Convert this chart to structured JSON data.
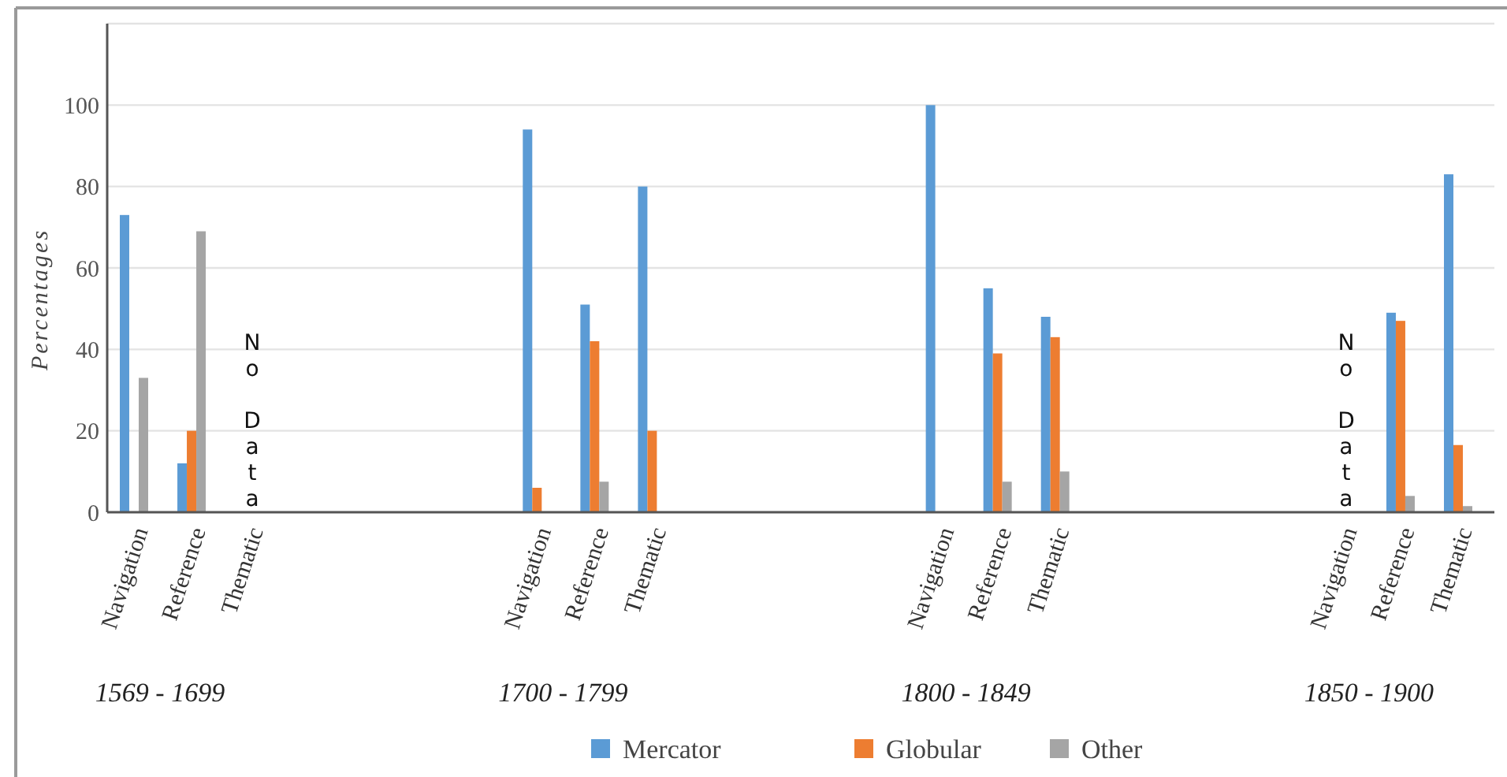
{
  "chart_data": {
    "type": "bar",
    "ylabel": "Percentages",
    "categories": [
      "Navigation",
      "Reference",
      "Thematic",
      null,
      null,
      null,
      null,
      "Navigation",
      "Reference",
      "Thematic",
      null,
      null,
      null,
      null,
      "Navigation",
      "Reference",
      "Thematic",
      null,
      null,
      null,
      null,
      "Navigation",
      "Reference",
      "Thematic"
    ],
    "series": [
      {
        "name": "Mercator",
        "color": "#5b9bd5",
        "values": [
          73,
          12,
          null,
          null,
          null,
          null,
          null,
          94,
          51,
          80,
          null,
          null,
          null,
          null,
          100,
          55,
          48,
          null,
          null,
          null,
          null,
          null,
          49,
          83
        ]
      },
      {
        "name": "Globular",
        "color": "#ed7d31",
        "values": [
          0,
          20,
          null,
          null,
          null,
          null,
          null,
          6,
          42,
          20,
          null,
          null,
          null,
          null,
          0,
          39,
          43,
          null,
          null,
          null,
          null,
          null,
          47,
          16.5
        ]
      },
      {
        "name": "Other",
        "color": "#a5a5a5",
        "values": [
          33,
          69,
          null,
          null,
          null,
          null,
          null,
          0,
          7.5,
          0,
          null,
          null,
          null,
          null,
          0,
          7.5,
          10,
          null,
          null,
          null,
          null,
          null,
          4,
          1.5
        ]
      }
    ],
    "ylim": [
      0,
      120
    ],
    "yticks": [
      0,
      20,
      40,
      60,
      80,
      100,
      {
        "value": 120,
        "label": null
      }
    ],
    "grid": "y",
    "legend": "bottom",
    "annotations": [
      "1569 - 1699",
      "1700 - 1799",
      "1800 - 1849",
      "1850 - 1900",
      "No Data",
      "No Data"
    ]
  }
}
